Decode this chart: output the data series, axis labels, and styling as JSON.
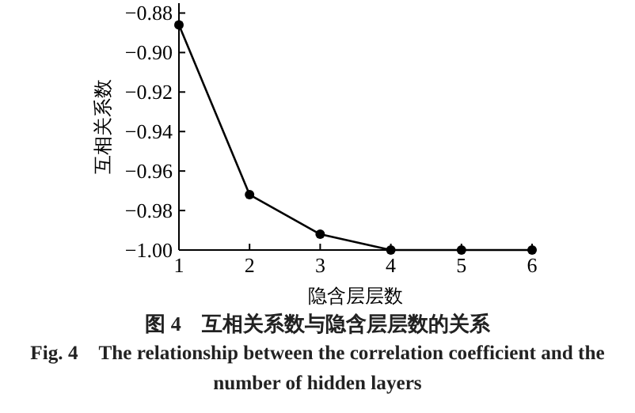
{
  "chart_data": {
    "type": "line",
    "title": "图 4　互相关系数与隐含层层数的关系",
    "subtitle": "Fig. 4　The relationship between the correlation coefficient and the number of hidden layers",
    "xlabel": "隐含层层数",
    "ylabel": "互相关系数",
    "x": [
      1,
      2,
      3,
      4,
      5,
      6
    ],
    "series": [
      {
        "color": "#000000",
        "values": [
          -0.886,
          -0.972,
          -0.992,
          -1.0,
          -1.0,
          -1.0
        ]
      }
    ],
    "xlim": [
      1,
      6
    ],
    "xticks": [
      1,
      2,
      3,
      4,
      5,
      6
    ],
    "ylim": [
      -1.0,
      -0.875
    ],
    "yticks": [
      {
        "value": -0.88,
        "label": "−0.88"
      },
      {
        "value": -0.9,
        "label": "−0.90"
      },
      {
        "value": -0.92,
        "label": "−0.92"
      },
      {
        "value": -0.94,
        "label": "−0.94"
      },
      {
        "value": -0.96,
        "label": "−0.96"
      },
      {
        "value": -0.98,
        "label": "−0.98"
      },
      {
        "value": -1.0,
        "label": "−1.00"
      }
    ],
    "marker": "circle",
    "line_style": "solid",
    "grid": false
  }
}
